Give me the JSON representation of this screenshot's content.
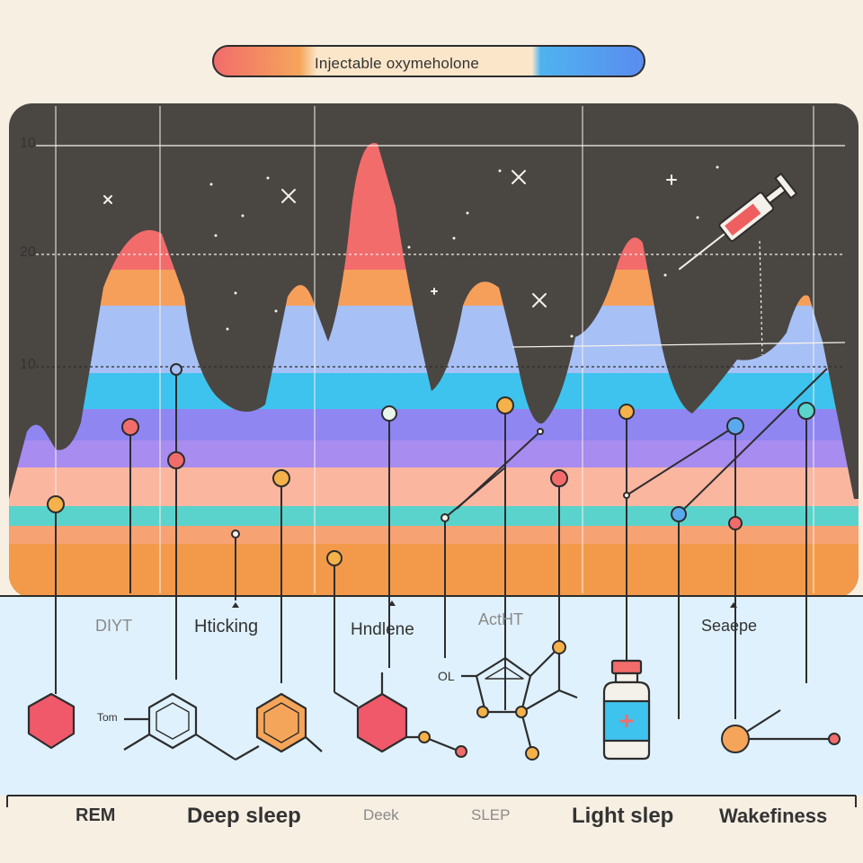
{
  "title": "Injectable oxymeholone",
  "y_ticks": [
    "10",
    "20",
    "10"
  ],
  "mid_labels": [
    "DIYT",
    "Hticking",
    "Hndlene",
    "ActHT",
    "Seaepe"
  ],
  "bottom_labels": [
    "REM",
    "Deep sleep",
    "Deek",
    "SLEP",
    "Light slep",
    "Wakefiness"
  ],
  "molecule_text": [
    "Tom",
    "OL"
  ],
  "colors": {
    "dark_bg": "#4a4642",
    "lower_panel": "#dff1fc",
    "paper": "#f8efe3",
    "bands": [
      "#f26c6c",
      "#f5a55a",
      "#a7c0f5",
      "#3ec3ee",
      "#8f86f2",
      "#a88cf0",
      "#fbb6a0",
      "#5ad3cc",
      "#f6a273",
      "#f39a4a"
    ]
  }
}
